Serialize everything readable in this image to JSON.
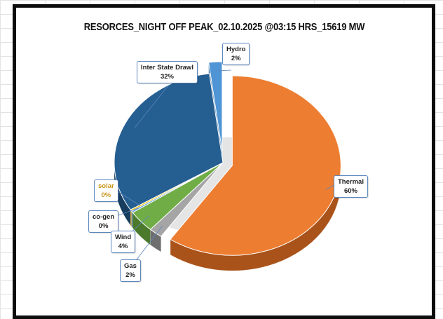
{
  "chart_data": {
    "type": "pie",
    "title": "RESORCES_NIGHT OFF PEAK_02.10.2025 @03:15 HRS_15619 MW",
    "slices": [
      {
        "name": "Thermal",
        "pct_label": "60%",
        "value": 60,
        "color": "#ED7D31",
        "side": "#A9531A"
      },
      {
        "name": "Gas",
        "pct_label": "2%",
        "value": 2,
        "color": "#A5A5A5",
        "side": "#6E6E6E"
      },
      {
        "name": "Wind",
        "pct_label": "4%",
        "value": 4,
        "color": "#70AD47",
        "side": "#4B7A2C"
      },
      {
        "name": "co-gen",
        "pct_label": "0%",
        "value": 0.3,
        "color": "#5B9BD5",
        "side": "#3C6E9E"
      },
      {
        "name": "solar",
        "pct_label": "0%",
        "value": 0.3,
        "color": "#FFC000",
        "side": "#B38600"
      },
      {
        "name": "Inter State Drawl",
        "pct_label": "32%",
        "value": 32,
        "color": "#255E91",
        "side": "#163C5E"
      },
      {
        "name": "Hydro",
        "pct_label": "2%",
        "value": 2,
        "color": "#4F94D4",
        "side": "#2F6A9E"
      }
    ],
    "solar_label_color": "#C9961A",
    "legend": "none",
    "data_labels": "callouts"
  }
}
